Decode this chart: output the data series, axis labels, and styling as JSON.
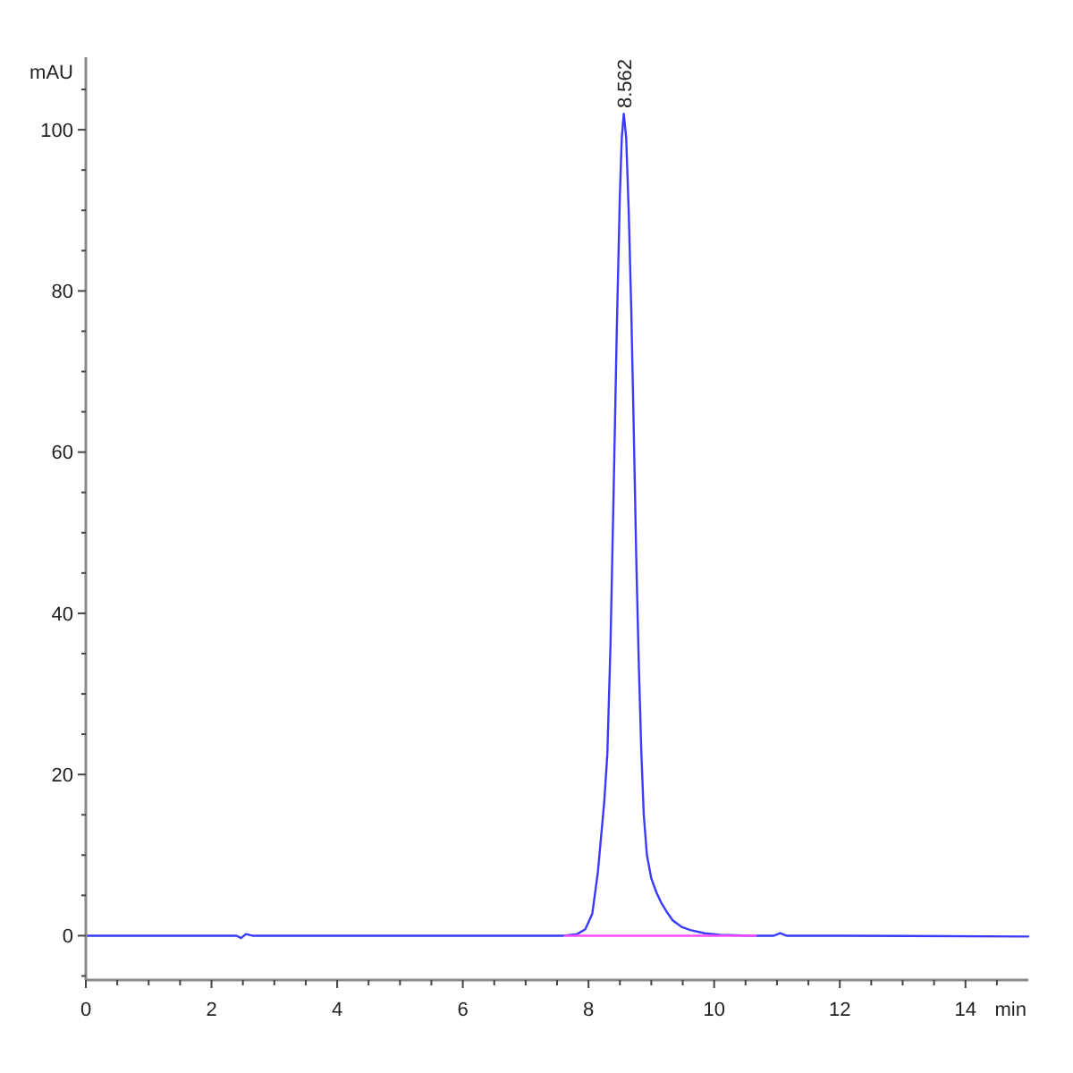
{
  "chart_data": {
    "type": "line",
    "xlabel": "min",
    "ylabel": "mAU",
    "xlim": [
      0,
      15
    ],
    "ylim": [
      -5.5,
      109
    ],
    "xticks": [
      0,
      {
        "value": 0.5,
        "label": null
      },
      {
        "value": 1,
        "label": null
      },
      {
        "value": 1.5,
        "label": null
      },
      2,
      {
        "value": 2.5,
        "label": null
      },
      {
        "value": 3,
        "label": null
      },
      {
        "value": 3.5,
        "label": null
      },
      4,
      {
        "value": 4.5,
        "label": null
      },
      {
        "value": 5,
        "label": null
      },
      {
        "value": 5.5,
        "label": null
      },
      6,
      {
        "value": 6.5,
        "label": null
      },
      {
        "value": 7,
        "label": null
      },
      {
        "value": 7.5,
        "label": null
      },
      8,
      {
        "value": 8.5,
        "label": null
      },
      {
        "value": 9,
        "label": null
      },
      {
        "value": 9.5,
        "label": null
      },
      10,
      {
        "value": 10.5,
        "label": null
      },
      {
        "value": 11,
        "label": null
      },
      {
        "value": 11.5,
        "label": null
      },
      12,
      {
        "value": 12.5,
        "label": null
      },
      {
        "value": 13,
        "label": null
      },
      {
        "value": 13.5,
        "label": null
      },
      14,
      {
        "value": 14.5,
        "label": null
      }
    ],
    "yticks": [
      {
        "value": -5,
        "label": null
      },
      0,
      {
        "value": 5,
        "label": null
      },
      {
        "value": 10,
        "label": null
      },
      {
        "value": 15,
        "label": null
      },
      20,
      {
        "value": 25,
        "label": null
      },
      {
        "value": 30,
        "label": null
      },
      {
        "value": 35,
        "label": null
      },
      40,
      {
        "value": 45,
        "label": null
      },
      {
        "value": 50,
        "label": null
      },
      {
        "value": 55,
        "label": null
      },
      60,
      {
        "value": 65,
        "label": null
      },
      {
        "value": 70,
        "label": null
      },
      {
        "value": 75,
        "label": null
      },
      80,
      {
        "value": 85,
        "label": null
      },
      {
        "value": 90,
        "label": null
      },
      {
        "value": 95,
        "label": null
      },
      100,
      {
        "value": 105,
        "label": null
      }
    ],
    "series": [
      {
        "color": "#3a3aff",
        "x": [
          0,
          2.4,
          2.47,
          2.55,
          2.65,
          7.6,
          7.82,
          7.95,
          8.06,
          8.15,
          8.25,
          8.3,
          8.35,
          8.4,
          8.45,
          8.5,
          8.53,
          8.562,
          8.6,
          8.64,
          8.68,
          8.72,
          8.76,
          8.8,
          8.84,
          8.88,
          8.93,
          9,
          9.08,
          9.15,
          9.25,
          9.34,
          9.48,
          9.62,
          9.85,
          10.09,
          10.6,
          10.95,
          11.05,
          11.15,
          12,
          15
        ],
        "values": [
          0,
          0,
          -0.3,
          0.2,
          0,
          0,
          0.2,
          0.8,
          2.7,
          7.9,
          16.5,
          22.5,
          36,
          55,
          75,
          92,
          99,
          102,
          99,
          90,
          78,
          63,
          47,
          34,
          23,
          15,
          10,
          7.1,
          5.4,
          4.2,
          2.9,
          1.9,
          1.1,
          0.7,
          0.3,
          0.1,
          0,
          0,
          0.3,
          0,
          0,
          -0.1
        ]
      },
      {
        "color": "#ff4dff",
        "x": [
          7.63,
          10.66
        ],
        "values": [
          0,
          0
        ]
      }
    ],
    "annotations": [
      {
        "text": "8.562",
        "x": 8.562,
        "y": 102
      }
    ]
  }
}
